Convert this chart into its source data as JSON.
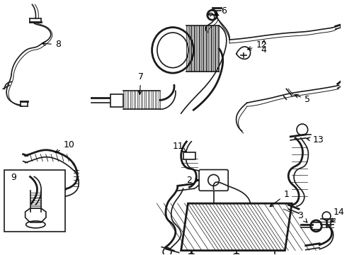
{
  "bg_color": "#ffffff",
  "line_color": "#1a1a1a",
  "lw": 1.2,
  "lw_thin": 0.7,
  "lw_thick": 2.0,
  "fs": 9
}
